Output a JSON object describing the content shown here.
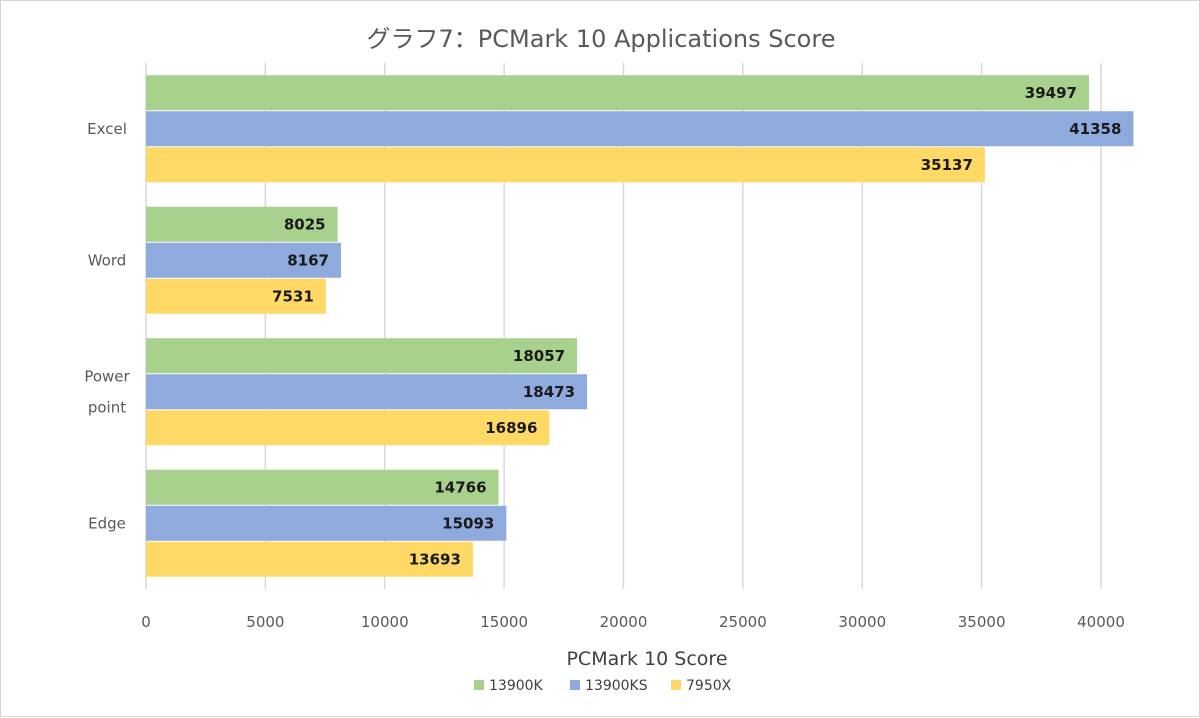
{
  "chart_data": {
    "type": "bar",
    "orientation": "horizontal",
    "title": "グラフ7：PCMark 10 Applications Score",
    "xlabel": "PCMark 10 Score",
    "ylabel": "",
    "xlim": [
      0,
      40000
    ],
    "x_ticks": [
      "0",
      "5000",
      "10000",
      "15000",
      "20000",
      "25000",
      "30000",
      "35000",
      "40000"
    ],
    "grid": true,
    "legend_position": "bottom",
    "categories": [
      {
        "lines": [
          "Excel"
        ]
      },
      {
        "lines": [
          "Word"
        ]
      },
      {
        "lines": [
          "Power",
          "point"
        ]
      },
      {
        "lines": [
          "Edge"
        ]
      }
    ],
    "series": [
      {
        "name": "13900K",
        "color": "#a9d18e",
        "values": [
          39497,
          8025,
          18057,
          14766
        ]
      },
      {
        "name": "13900KS",
        "color": "#8faadc",
        "values": [
          41358,
          8167,
          18473,
          15093
        ]
      },
      {
        "name": "7950X",
        "color": "#ffd966",
        "values": [
          35137,
          7531,
          16896,
          13693
        ]
      }
    ]
  }
}
